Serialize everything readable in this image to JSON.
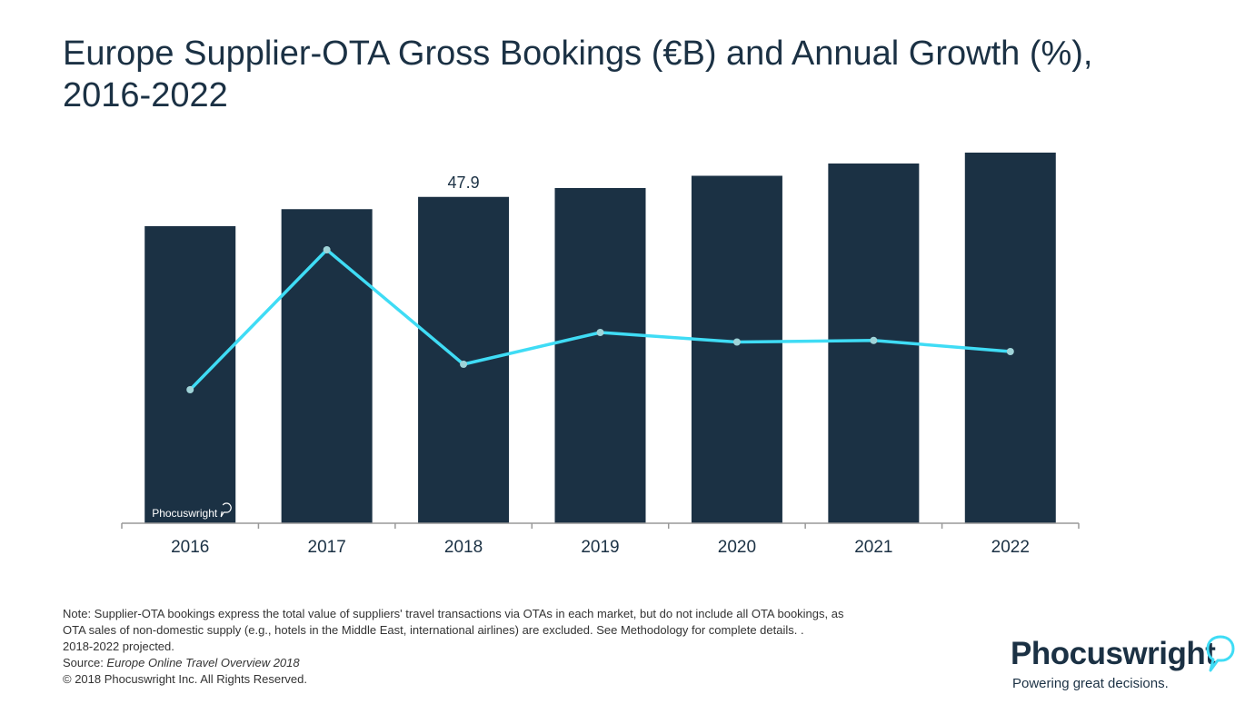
{
  "title": "Europe Supplier-OTA Gross Bookings (€B) and Annual Growth (%), 2016-2022",
  "watermark": "Phocuswright",
  "chart_data": {
    "type": "bar",
    "categories": [
      "2016",
      "2017",
      "2018",
      "2019",
      "2020",
      "2021",
      "2022"
    ],
    "series": [
      {
        "values": [
          43.6,
          46.1,
          47.9,
          49.2,
          51.0,
          52.8,
          54.4
        ],
        "kind": "bar",
        "color": "#1b3144"
      },
      {
        "values": [
          4.2,
          8.6,
          5.0,
          6.0,
          5.7,
          5.75,
          5.4
        ],
        "kind": "line",
        "color": "#3fdcf5"
      }
    ],
    "data_labels": [
      {
        "category": "2018",
        "text": "47.9"
      }
    ],
    "ylim": [
      0,
      56
    ],
    "y2lim": [
      0,
      12
    ],
    "grid": false,
    "legend": "none"
  },
  "notes": {
    "line1": "Note: Supplier-OTA bookings express the total value of suppliers' travel transactions via OTAs in each market, but do not include all OTA bookings, as",
    "line2": "OTA sales of non-domestic supply (e.g., hotels in the Middle East, international airlines) are excluded. See Methodology for complete details. .",
    "line3": "2018-2022 projected.",
    "source_prefix": "Source: ",
    "source_title": "Europe Online Travel Overview 2018",
    "copyright": "© 2018 Phocuswright Inc. All Rights Reserved."
  },
  "logo": {
    "name": "Phocuswright",
    "tagline": "Powering great decisions."
  }
}
